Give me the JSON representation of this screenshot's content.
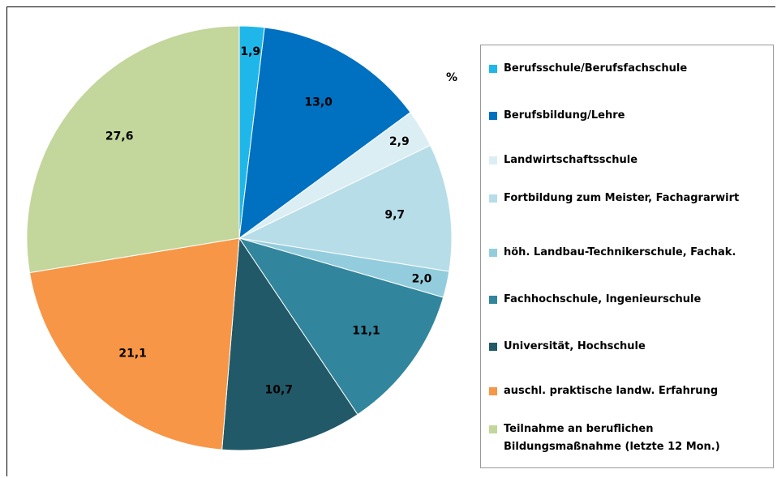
{
  "chart_data": {
    "type": "pie",
    "unit": "%",
    "categories": [
      "Berufsschule/Berufsfachschule",
      "Berufsbildung/Lehre",
      "Landwirtschaftsschule",
      "Fortbildung zum Meister, Fachagrarwirt",
      "höh. Landbau-Technikerschule, Fachak.",
      "Fachhochschule, Ingenieurschule",
      "Universität, Hochschule",
      "auschl. praktische landw. Erfahrung",
      "Teilnahme an beruflichen Bildungsmaßnahme (letzte 12 Mon.)"
    ],
    "values": [
      1.9,
      13.0,
      2.9,
      9.7,
      2.0,
      11.1,
      10.7,
      21.1,
      27.6
    ],
    "value_labels": [
      "1,9",
      "13,0",
      "2,9",
      "9,7",
      "2,0",
      "11,1",
      "10,7",
      "21,1",
      "27,6"
    ],
    "colors": [
      "#1fb7ea",
      "#0070c0",
      "#dbeef4",
      "#b7dde8",
      "#93cddd",
      "#31859c",
      "#215968",
      "#f79646",
      "#c3d69b"
    ],
    "legend": "right"
  }
}
